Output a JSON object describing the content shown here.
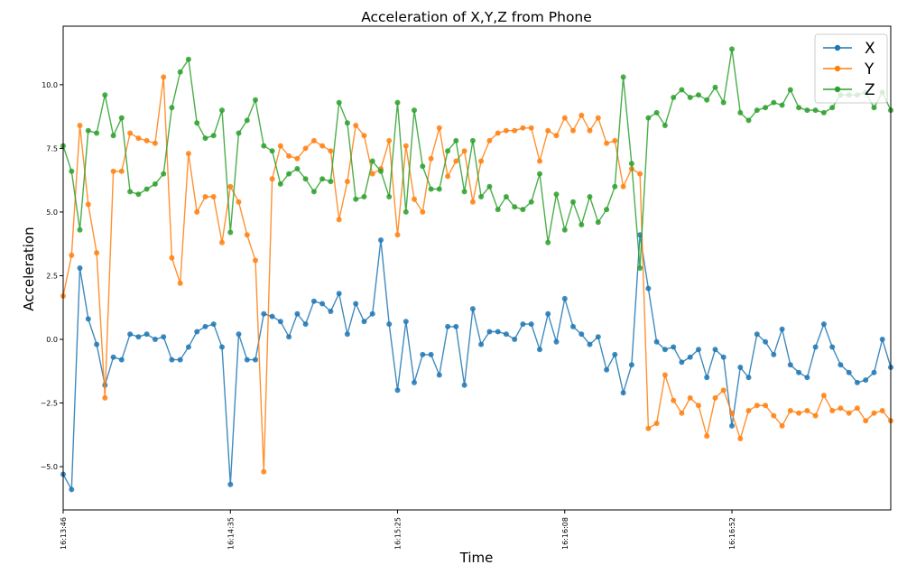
{
  "chart_data": {
    "type": "line",
    "title": "Acceleration of X,Y,Z from Phone",
    "xlabel": "Time",
    "ylabel": "Acceleration",
    "xlim": [
      0,
      99
    ],
    "ylim": [
      -6.7,
      12.3
    ],
    "x_tick_labels": [
      {
        "index": 0,
        "label": "16:13:46"
      },
      {
        "index": 20,
        "label": "16:14:35"
      },
      {
        "index": 40,
        "label": "16:15:25"
      },
      {
        "index": 60,
        "label": "16:16:08"
      },
      {
        "index": 80,
        "label": "16:16:52"
      }
    ],
    "y_ticks": [
      -5.0,
      -2.5,
      0.0,
      2.5,
      5.0,
      7.5,
      10.0
    ],
    "y_tick_labels": [
      "−5.0",
      "−2.5",
      "0.0",
      "2.5",
      "5.0",
      "7.5",
      "10.0"
    ],
    "legend": {
      "position": "top-right"
    },
    "grid": false,
    "series": [
      {
        "name": "X",
        "color": "#1f77b4",
        "values": [
          -5.3,
          -5.9,
          2.8,
          0.8,
          -0.2,
          -1.8,
          -0.7,
          -0.8,
          0.2,
          0.1,
          0.2,
          0.0,
          0.1,
          -0.8,
          -0.8,
          -0.3,
          0.3,
          0.5,
          0.6,
          -0.3,
          -5.7,
          0.2,
          -0.8,
          -0.8,
          1.0,
          0.9,
          0.7,
          0.1,
          1.0,
          0.6,
          1.5,
          1.4,
          1.1,
          1.8,
          0.2,
          1.4,
          0.7,
          1.0,
          3.9,
          0.6,
          -2.0,
          0.7,
          -1.7,
          -0.6,
          -0.6,
          -1.4,
          0.5,
          0.5,
          -1.8,
          1.2,
          -0.2,
          0.3,
          0.3,
          0.2,
          0.0,
          0.6,
          0.6,
          -0.4,
          1.0,
          -0.1,
          1.6,
          0.5,
          0.2,
          -0.2,
          0.1,
          -1.2,
          -0.6,
          -2.1,
          -1.0,
          4.1,
          2.0,
          -0.1,
          -0.4,
          -0.3,
          -0.9,
          -0.7,
          -0.4,
          -1.5,
          -0.4,
          -0.7,
          -3.4,
          -1.1,
          -1.5,
          0.2,
          -0.1,
          -0.6,
          0.4,
          -1.0,
          -1.3,
          -1.5,
          -0.3,
          0.6,
          -0.3,
          -1.0,
          -1.3,
          -1.7,
          -1.6,
          -1.3,
          0.0,
          -1.1
        ]
      },
      {
        "name": "Y",
        "color": "#ff7f0e",
        "values": [
          1.7,
          3.3,
          8.4,
          5.3,
          3.4,
          -2.3,
          6.6,
          6.6,
          8.1,
          7.9,
          7.8,
          7.7,
          10.3,
          3.2,
          2.2,
          7.3,
          5.0,
          5.6,
          5.6,
          3.8,
          6.0,
          5.4,
          4.1,
          3.1,
          -5.2,
          6.3,
          7.6,
          7.2,
          7.1,
          7.5,
          7.8,
          7.6,
          7.4,
          4.7,
          6.2,
          8.4,
          8.0,
          6.5,
          6.7,
          7.8,
          4.1,
          7.6,
          5.5,
          5.0,
          7.1,
          8.3,
          6.4,
          7.0,
          7.4,
          5.4,
          7.0,
          7.8,
          8.1,
          8.2,
          8.2,
          8.3,
          8.3,
          7.0,
          8.2,
          8.0,
          8.7,
          8.2,
          8.8,
          8.2,
          8.7,
          7.7,
          7.8,
          6.0,
          6.7,
          6.5,
          -3.5,
          -3.3,
          -1.4,
          -2.4,
          -2.9,
          -2.3,
          -2.6,
          -3.8,
          -2.3,
          -2.0,
          -2.9,
          -3.9,
          -2.8,
          -2.6,
          -2.6,
          -3.0,
          -3.4,
          -2.8,
          -2.9,
          -2.8,
          -3.0,
          -2.2,
          -2.8,
          -2.7,
          -2.9,
          -2.7,
          -3.2,
          -2.9,
          -2.8,
          -3.2
        ]
      },
      {
        "name": "Z",
        "color": "#2ca02c",
        "values": [
          7.6,
          6.6,
          4.3,
          8.2,
          8.1,
          9.6,
          8.0,
          8.7,
          5.8,
          5.7,
          5.9,
          6.1,
          6.5,
          9.1,
          10.5,
          11.0,
          8.5,
          7.9,
          8.0,
          9.0,
          4.2,
          8.1,
          8.6,
          9.4,
          7.6,
          7.4,
          6.1,
          6.5,
          6.7,
          6.3,
          5.8,
          6.3,
          6.2,
          9.3,
          8.5,
          5.5,
          5.6,
          7.0,
          6.6,
          5.6,
          9.3,
          5.0,
          9.0,
          6.8,
          5.9,
          5.9,
          7.4,
          7.8,
          5.8,
          7.8,
          5.6,
          6.0,
          5.1,
          5.6,
          5.2,
          5.1,
          5.4,
          6.5,
          3.8,
          5.7,
          4.3,
          5.4,
          4.5,
          5.6,
          4.6,
          5.1,
          6.0,
          10.3,
          6.9,
          2.8,
          8.7,
          8.9,
          8.4,
          9.5,
          9.8,
          9.5,
          9.6,
          9.4,
          9.9,
          9.3,
          11.4,
          8.9,
          8.6,
          9.0,
          9.1,
          9.3,
          9.2,
          9.8,
          9.1,
          9.0,
          9.0,
          8.9,
          9.1,
          9.6,
          9.6,
          9.6,
          9.7,
          9.1,
          9.7,
          9.0
        ]
      }
    ]
  }
}
